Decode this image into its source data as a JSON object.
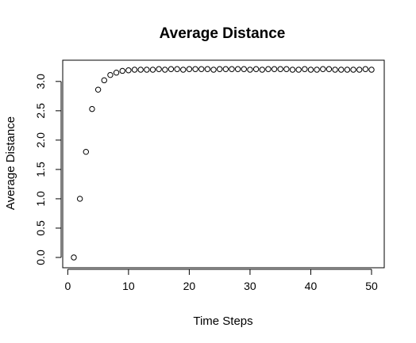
{
  "chart_data": {
    "type": "scatter",
    "title": "Average Distance",
    "xlabel": "Time Steps",
    "ylabel": "Average Distance",
    "xlim": [
      1,
      50
    ],
    "ylim": [
      0,
      3.2
    ],
    "xticks": [
      0,
      10,
      20,
      30,
      40,
      50
    ],
    "yticks": [
      0.0,
      0.5,
      1.0,
      1.5,
      2.0,
      2.5,
      3.0
    ],
    "ytick_labels": [
      "0.0",
      "0.5",
      "1.0",
      "1.5",
      "2.0",
      "2.5",
      "3.0"
    ],
    "grid": false,
    "marker": "open-circle",
    "color": "#000000",
    "x": [
      1,
      2,
      3,
      4,
      5,
      6,
      7,
      8,
      9,
      10,
      11,
      12,
      13,
      14,
      15,
      16,
      17,
      18,
      19,
      20,
      21,
      22,
      23,
      24,
      25,
      26,
      27,
      28,
      29,
      30,
      31,
      32,
      33,
      34,
      35,
      36,
      37,
      38,
      39,
      40,
      41,
      42,
      43,
      44,
      45,
      46,
      47,
      48,
      49,
      50
    ],
    "y": [
      0.0,
      1.0,
      1.8,
      2.53,
      2.86,
      3.02,
      3.11,
      3.15,
      3.18,
      3.19,
      3.2,
      3.2,
      3.2,
      3.2,
      3.21,
      3.2,
      3.21,
      3.21,
      3.2,
      3.21,
      3.21,
      3.21,
      3.21,
      3.2,
      3.21,
      3.21,
      3.21,
      3.21,
      3.21,
      3.2,
      3.21,
      3.2,
      3.21,
      3.21,
      3.21,
      3.21,
      3.2,
      3.2,
      3.21,
      3.2,
      3.2,
      3.21,
      3.21,
      3.2,
      3.2,
      3.2,
      3.2,
      3.2,
      3.21,
      3.2
    ]
  }
}
